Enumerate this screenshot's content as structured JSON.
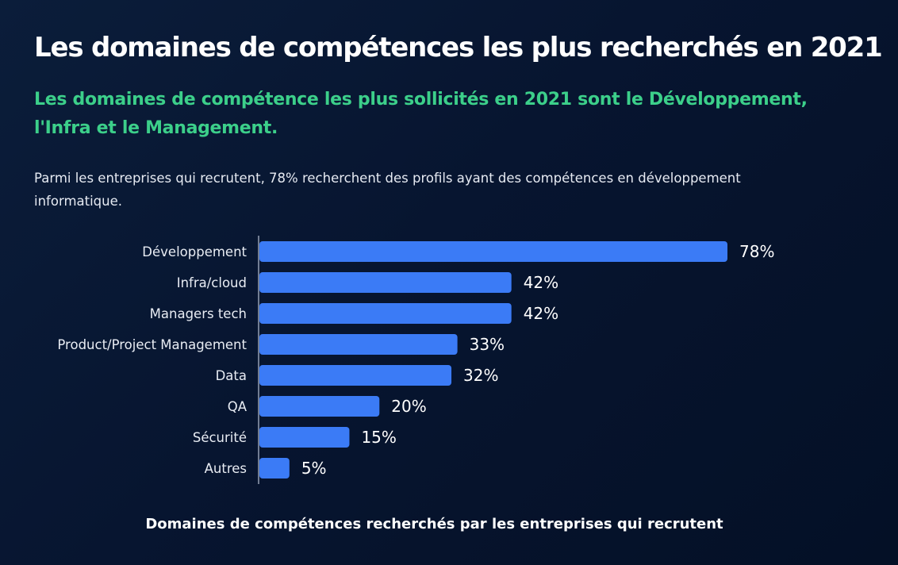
{
  "header": {
    "title": "Les domaines de compétences les plus recherchés en 2021",
    "subtitle": "Les domaines de compétence les plus sollicités en 2021 sont le Développement, l'Infra et le Management.",
    "description": "Parmi les entreprises qui recrutent, 78% recherchent des profils ayant des compétences en développement informatique."
  },
  "colors": {
    "bar": "#3b7bf6",
    "accent": "#3ccf8a",
    "axis": "#b8c2d4"
  },
  "chart_data": {
    "type": "bar",
    "orientation": "horizontal",
    "categories": [
      "Développement",
      "Infra/cloud",
      "Managers tech",
      "Product/Project Management",
      "Data",
      "QA",
      "Sécurité",
      "Autres"
    ],
    "values": [
      78,
      42,
      42,
      33,
      32,
      20,
      15,
      5
    ],
    "value_labels": [
      "78%",
      "42%",
      "42%",
      "33%",
      "32%",
      "20%",
      "15%",
      "5%"
    ],
    "title": "Domaines de compétences recherchés par les entreprises qui recrutent",
    "xlabel": "",
    "ylabel": "",
    "xlim": [
      0,
      78
    ],
    "grid": false
  }
}
